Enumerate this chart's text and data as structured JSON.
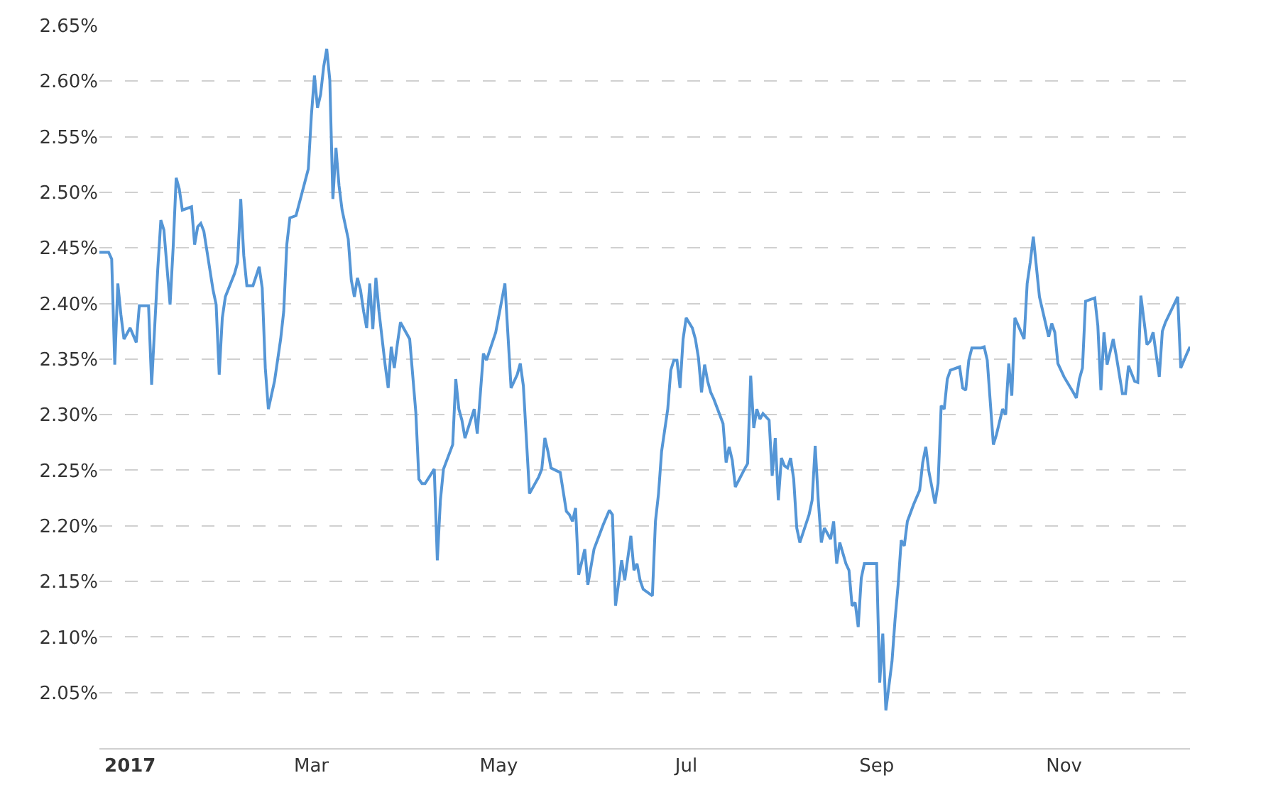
{
  "chart_data": {
    "type": "line",
    "color": "#5596d6",
    "grid": "y",
    "line_style": "solid",
    "marker": "none",
    "xlim": [
      "2016-12-22",
      "2017-12-12"
    ],
    "xticks": [
      {
        "value": "2017-01-01",
        "label": "2017"
      },
      {
        "value": "2017-03-01",
        "label": "Mar"
      },
      {
        "value": "2017-05-01",
        "label": "May"
      },
      {
        "value": "2017-07-01",
        "label": "Jul"
      },
      {
        "value": "2017-09-01",
        "label": "Sep"
      },
      {
        "value": "2017-11-01",
        "label": "Nov"
      }
    ],
    "ylim": [
      2.0,
      2.65
    ],
    "yticks": [
      {
        "value": 2.0,
        "label": null
      },
      {
        "value": 2.05,
        "label": "2.05%"
      },
      {
        "value": 2.1,
        "label": "2.10%"
      },
      {
        "value": 2.15,
        "label": "2.15%"
      },
      {
        "value": 2.2,
        "label": "2.20%"
      },
      {
        "value": 2.25,
        "label": "2.25%"
      },
      {
        "value": 2.3,
        "label": "2.30%"
      },
      {
        "value": 2.35,
        "label": "2.35%"
      },
      {
        "value": 2.4,
        "label": "2.40%"
      },
      {
        "value": 2.45,
        "label": "2.45%"
      },
      {
        "value": 2.5,
        "label": "2.50%"
      },
      {
        "value": 2.55,
        "label": "2.55%"
      },
      {
        "value": 2.6,
        "label": "2.60%"
      },
      {
        "value": 2.65,
        "label": "2.65%"
      }
    ],
    "x": [
      "2016-12-22",
      "2016-12-25",
      "2016-12-26",
      "2016-12-27",
      "2016-12-28",
      "2016-12-29",
      "2016-12-30",
      "2017-01-01",
      "2017-01-03",
      "2017-01-04",
      "2017-01-07",
      "2017-01-08",
      "2017-01-10",
      "2017-01-11",
      "2017-01-12",
      "2017-01-14",
      "2017-01-15",
      "2017-01-16",
      "2017-01-17",
      "2017-01-18",
      "2017-01-21",
      "2017-01-22",
      "2017-01-23",
      "2017-01-24",
      "2017-01-25",
      "2017-01-28",
      "2017-01-29",
      "2017-01-30",
      "2017-01-31",
      "2017-02-01",
      "2017-02-04",
      "2017-02-05",
      "2017-02-06",
      "2017-02-07",
      "2017-02-08",
      "2017-02-10",
      "2017-02-12",
      "2017-02-13",
      "2017-02-14",
      "2017-02-15",
      "2017-02-17",
      "2017-02-19",
      "2017-02-20",
      "2017-02-21",
      "2017-02-22",
      "2017-02-24",
      "2017-02-26",
      "2017-02-28",
      "2017-03-01",
      "2017-03-02",
      "2017-03-03",
      "2017-03-04",
      "2017-03-05",
      "2017-03-06",
      "2017-03-07",
      "2017-03-08",
      "2017-03-09",
      "2017-03-10",
      "2017-03-11",
      "2017-03-13",
      "2017-03-14",
      "2017-03-15",
      "2017-03-16",
      "2017-03-17",
      "2017-03-18",
      "2017-03-19",
      "2017-03-20",
      "2017-03-21",
      "2017-03-22",
      "2017-03-23",
      "2017-03-25",
      "2017-03-26",
      "2017-03-27",
      "2017-03-28",
      "2017-03-29",
      "2017-03-30",
      "2017-04-02",
      "2017-04-04",
      "2017-04-05",
      "2017-04-06",
      "2017-04-07",
      "2017-04-10",
      "2017-04-11",
      "2017-04-12",
      "2017-04-13",
      "2017-04-16",
      "2017-04-17",
      "2017-04-18",
      "2017-04-19",
      "2017-04-20",
      "2017-04-23",
      "2017-04-24",
      "2017-04-26",
      "2017-04-27",
      "2017-04-30",
      "2017-05-03",
      "2017-05-05",
      "2017-05-07",
      "2017-05-08",
      "2017-05-09",
      "2017-05-11",
      "2017-05-14",
      "2017-05-15",
      "2017-05-16",
      "2017-05-17",
      "2017-05-18",
      "2017-05-21",
      "2017-05-23",
      "2017-05-24",
      "2017-05-25",
      "2017-05-26",
      "2017-05-27",
      "2017-05-29",
      "2017-05-30",
      "2017-06-01",
      "2017-06-04",
      "2017-06-06",
      "2017-06-07",
      "2017-06-08",
      "2017-06-10",
      "2017-06-11",
      "2017-06-13",
      "2017-06-14",
      "2017-06-15",
      "2017-06-16",
      "2017-06-17",
      "2017-06-20",
      "2017-06-21",
      "2017-06-22",
      "2017-06-23",
      "2017-06-25",
      "2017-06-26",
      "2017-06-27",
      "2017-06-28",
      "2017-06-29",
      "2017-06-30",
      "2017-07-01",
      "2017-07-03",
      "2017-07-04",
      "2017-07-05",
      "2017-07-06",
      "2017-07-07",
      "2017-07-08",
      "2017-07-09",
      "2017-07-10",
      "2017-07-13",
      "2017-07-14",
      "2017-07-15",
      "2017-07-16",
      "2017-07-17",
      "2017-07-20",
      "2017-07-21",
      "2017-07-22",
      "2017-07-23",
      "2017-07-24",
      "2017-07-25",
      "2017-07-26",
      "2017-07-28",
      "2017-07-29",
      "2017-07-30",
      "2017-07-31",
      "2017-08-01",
      "2017-08-02",
      "2017-08-03",
      "2017-08-04",
      "2017-08-05",
      "2017-08-06",
      "2017-08-07",
      "2017-08-10",
      "2017-08-11",
      "2017-08-12",
      "2017-08-13",
      "2017-08-14",
      "2017-08-15",
      "2017-08-17",
      "2017-08-18",
      "2017-08-19",
      "2017-08-20",
      "2017-08-22",
      "2017-08-23",
      "2017-08-24",
      "2017-08-25",
      "2017-08-26",
      "2017-08-27",
      "2017-08-28",
      "2017-09-01",
      "2017-09-02",
      "2017-09-03",
      "2017-09-04",
      "2017-09-06",
      "2017-09-07",
      "2017-09-08",
      "2017-09-09",
      "2017-09-10",
      "2017-09-11",
      "2017-09-13",
      "2017-09-15",
      "2017-09-16",
      "2017-09-17",
      "2017-09-18",
      "2017-09-20",
      "2017-09-21",
      "2017-09-22",
      "2017-09-23",
      "2017-09-24",
      "2017-09-25",
      "2017-09-28",
      "2017-09-29",
      "2017-09-30",
      "2017-10-01",
      "2017-10-02",
      "2017-10-05",
      "2017-10-06",
      "2017-10-07",
      "2017-10-09",
      "2017-10-10",
      "2017-10-12",
      "2017-10-13",
      "2017-10-14",
      "2017-10-15",
      "2017-10-16",
      "2017-10-19",
      "2017-10-20",
      "2017-10-21",
      "2017-10-22",
      "2017-10-24",
      "2017-10-27",
      "2017-10-28",
      "2017-10-29",
      "2017-10-30",
      "2017-11-01",
      "2017-11-04",
      "2017-11-05",
      "2017-11-06",
      "2017-11-07",
      "2017-11-08",
      "2017-11-11",
      "2017-11-12",
      "2017-11-13",
      "2017-11-14",
      "2017-11-15",
      "2017-11-17",
      "2017-11-18",
      "2017-11-20",
      "2017-11-21",
      "2017-11-22",
      "2017-11-24",
      "2017-11-25",
      "2017-11-26",
      "2017-11-28",
      "2017-11-29",
      "2017-11-30",
      "2017-12-02",
      "2017-12-03",
      "2017-12-04",
      "2017-12-08",
      "2017-12-09",
      "2017-12-11",
      "2017-12-12"
    ],
    "values": [
      2.446,
      2.446,
      2.44,
      2.345,
      2.418,
      2.39,
      2.368,
      2.378,
      2.365,
      2.398,
      2.398,
      2.327,
      2.431,
      2.475,
      2.466,
      2.399,
      2.45,
      2.513,
      2.503,
      2.484,
      2.487,
      2.453,
      2.469,
      2.472,
      2.465,
      2.412,
      2.399,
      2.336,
      2.387,
      2.406,
      2.427,
      2.437,
      2.494,
      2.443,
      2.416,
      2.416,
      2.433,
      2.414,
      2.342,
      2.305,
      2.33,
      2.368,
      2.393,
      2.453,
      2.477,
      2.479,
      2.5,
      2.521,
      2.569,
      2.605,
      2.576,
      2.588,
      2.613,
      2.629,
      2.601,
      2.494,
      2.54,
      2.506,
      2.484,
      2.458,
      2.421,
      2.406,
      2.423,
      2.412,
      2.393,
      2.378,
      2.418,
      2.377,
      2.423,
      2.393,
      2.345,
      2.324,
      2.361,
      2.342,
      2.364,
      2.383,
      2.368,
      2.302,
      2.242,
      2.238,
      2.238,
      2.251,
      2.169,
      2.223,
      2.251,
      2.273,
      2.332,
      2.305,
      2.295,
      2.279,
      2.305,
      2.283,
      2.355,
      2.349,
      2.374,
      2.418,
      2.324,
      2.336,
      2.346,
      2.326,
      2.229,
      2.244,
      2.251,
      2.279,
      2.267,
      2.252,
      2.248,
      2.213,
      2.21,
      2.204,
      2.216,
      2.156,
      2.179,
      2.147,
      2.179,
      2.201,
      2.214,
      2.21,
      2.128,
      2.169,
      2.151,
      2.191,
      2.16,
      2.166,
      2.151,
      2.143,
      2.137,
      2.204,
      2.229,
      2.267,
      2.305,
      2.34,
      2.349,
      2.349,
      2.324,
      2.368,
      2.387,
      2.378,
      2.368,
      2.351,
      2.32,
      2.345,
      2.33,
      2.32,
      2.314,
      2.292,
      2.257,
      2.271,
      2.259,
      2.235,
      2.251,
      2.256,
      2.335,
      2.288,
      2.305,
      2.296,
      2.301,
      2.295,
      2.245,
      2.279,
      2.223,
      2.261,
      2.254,
      2.252,
      2.261,
      2.242,
      2.198,
      2.185,
      2.21,
      2.223,
      2.272,
      2.223,
      2.185,
      2.198,
      2.188,
      2.204,
      2.166,
      2.185,
      2.166,
      2.16,
      2.128,
      2.131,
      2.109,
      2.153,
      2.166,
      2.166,
      2.059,
      2.103,
      2.034,
      2.078,
      2.116,
      2.147,
      2.187,
      2.182,
      2.204,
      2.219,
      2.232,
      2.257,
      2.271,
      2.249,
      2.22,
      2.238,
      2.308,
      2.305,
      2.332,
      2.34,
      2.343,
      2.324,
      2.322,
      2.349,
      2.36,
      2.36,
      2.361,
      2.349,
      2.273,
      2.282,
      2.305,
      2.3,
      2.346,
      2.317,
      2.387,
      2.368,
      2.418,
      2.437,
      2.46,
      2.406,
      2.37,
      2.382,
      2.374,
      2.346,
      2.334,
      2.32,
      2.315,
      2.332,
      2.342,
      2.402,
      2.405,
      2.38,
      2.322,
      2.374,
      2.345,
      2.368,
      2.353,
      2.319,
      2.319,
      2.344,
      2.33,
      2.329,
      2.407,
      2.363,
      2.366,
      2.374,
      2.334,
      2.375,
      2.383,
      2.406,
      2.342,
      2.355,
      2.361
    ]
  }
}
